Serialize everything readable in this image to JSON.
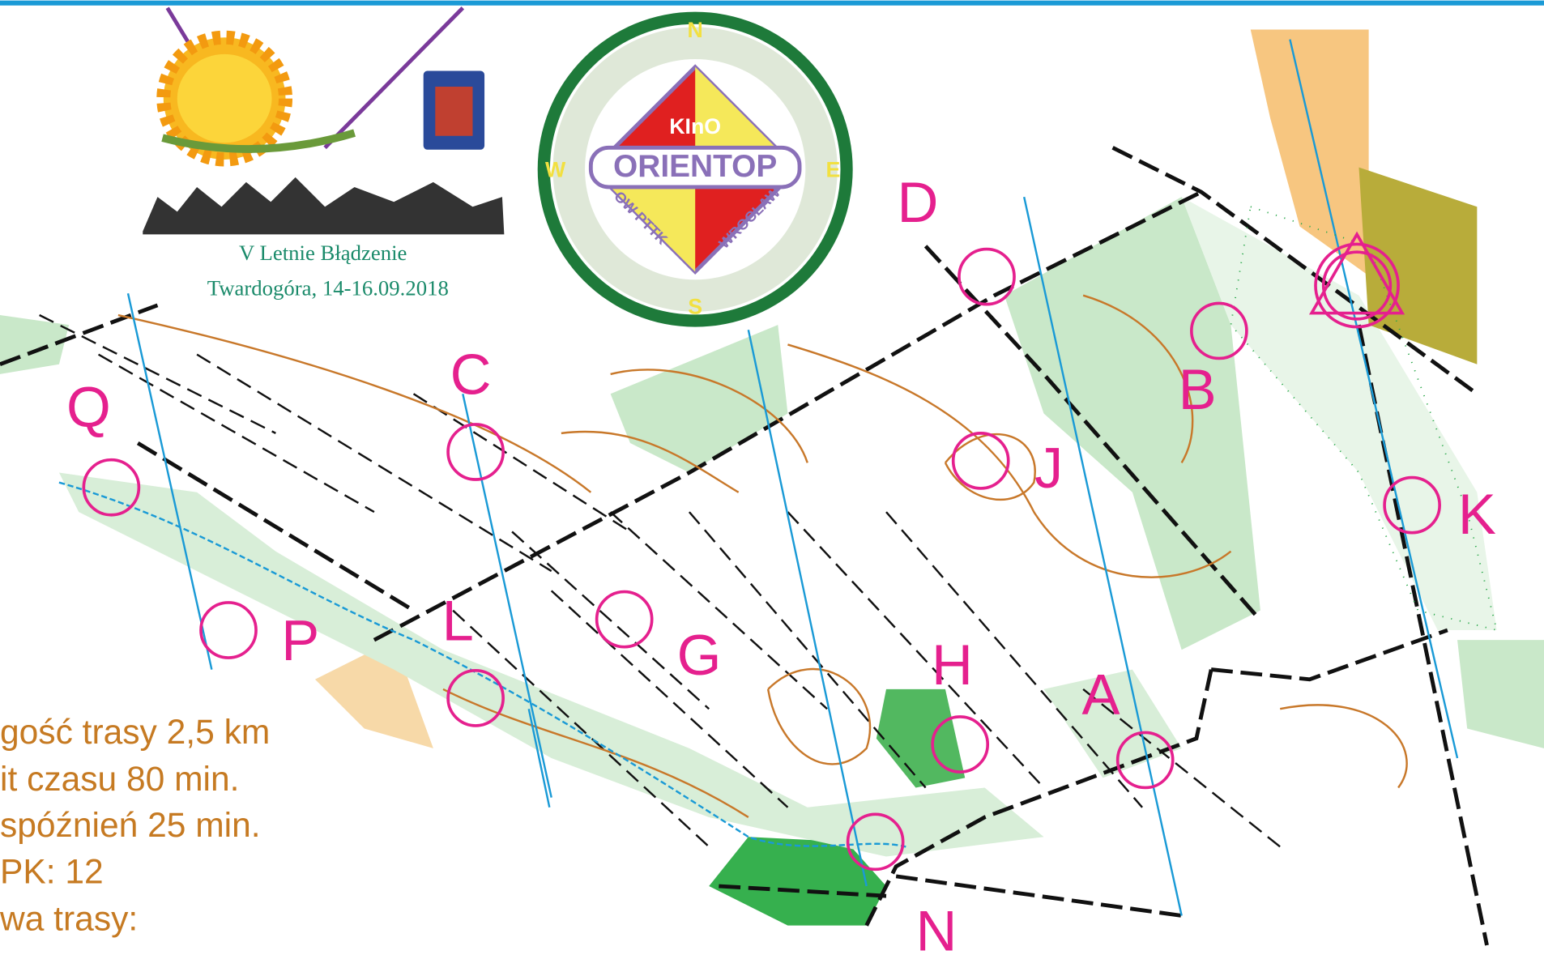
{
  "event": {
    "title": "V Letnie Błądzenie",
    "subtitle": "Twardogóra, 14-16.09.2018"
  },
  "logo": {
    "north": "N",
    "south": "S",
    "west": "W",
    "east": "E",
    "club": "KInO",
    "name": "ORIENTOP",
    "left_ring": "OW PTTK",
    "right_ring": "WROCŁAW"
  },
  "info": [
    "gość trasy 2,5 km",
    "it czasu 80 min.",
    "spóźnień 25 min.",
    "PK: 12",
    "wa trasy:"
  ],
  "controls": [
    "D",
    "B",
    "C",
    "J",
    "Q",
    "K",
    "G",
    "P",
    "L",
    "H",
    "A",
    "N"
  ]
}
